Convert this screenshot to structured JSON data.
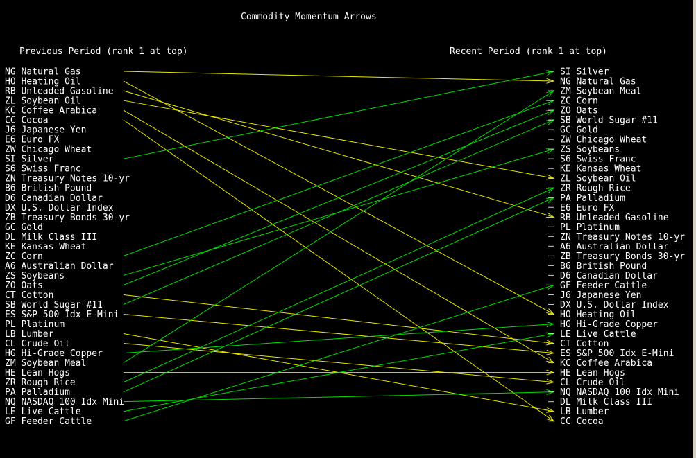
{
  "chart_data": {
    "type": "slope",
    "title": "Commodity Momentum Arrows",
    "left_header": "Previous Period (rank 1 at top)",
    "right_header": "Recent Period (rank 1 at top)",
    "colors": {
      "background": "#000000",
      "text": "#ffffff",
      "rank_up": "#00e000",
      "rank_down": "#e8e800"
    },
    "previous": [
      "NG Natural Gas",
      "HO Heating Oil",
      "RB Unleaded Gasoline",
      "ZL Soybean Oil",
      "KC Coffee Arabica",
      "CC Cocoa",
      "J6 Japanese Yen",
      "E6 Euro FX",
      "ZW Chicago Wheat",
      "SI Silver",
      "S6 Swiss Franc",
      "ZN Treasury Notes 10-yr",
      "B6 British Pound",
      "D6 Canadian Dollar",
      "DX U.S. Dollar Index",
      "ZB Treasury Bonds 30-yr",
      "GC Gold",
      "DL Milk Class III",
      "KE Kansas Wheat",
      "ZC Corn",
      "A6 Australian Dollar",
      "ZS Soybeans",
      "ZO Oats",
      "CT Cotton",
      "SB World Sugar #11",
      "ES S&P 500 Idx E-Mini",
      "PL Platinum",
      "LB Lumber",
      "CL Crude Oil",
      "HG Hi-Grade Copper",
      "ZM Soybean Meal",
      "HE Lean Hogs",
      "ZR Rough Rice",
      "PA Palladium",
      "NQ NASDAQ 100 Idx Mini",
      "LE Live Cattle",
      "GF Feeder Cattle"
    ],
    "recent": [
      "SI Silver",
      "NG Natural Gas",
      "ZM Soybean Meal",
      "ZC Corn",
      "ZO Oats",
      "SB World Sugar #11",
      "GC Gold",
      "ZW Chicago Wheat",
      "ZS Soybeans",
      "S6 Swiss Franc",
      "KE Kansas Wheat",
      "ZL Soybean Oil",
      "ZR Rough Rice",
      "PA Palladium",
      "E6 Euro FX",
      "RB Unleaded Gasoline",
      "PL Platinum",
      "ZN Treasury Notes 10-yr",
      "A6 Australian Dollar",
      "ZB Treasury Bonds 30-yr",
      "B6 British Pound",
      "D6 Canadian Dollar",
      "GF Feeder Cattle",
      "J6 Japanese Yen",
      "DX U.S. Dollar Index",
      "HO Heating Oil",
      "HG Hi-Grade Copper",
      "LE Live Cattle",
      "CT Cotton",
      "ES S&P 500 Idx E-Mini",
      "KC Coffee Arabica",
      "HE Lean Hogs",
      "CL Crude Oil",
      "NQ NASDAQ 100 Idx Mini",
      "DL Milk Class III",
      "LB Lumber",
      "CC Cocoa"
    ],
    "arrows": [
      {
        "from": 1,
        "to": 2
      },
      {
        "from": 2,
        "to": 26
      },
      {
        "from": 3,
        "to": 16
      },
      {
        "from": 4,
        "to": 12
      },
      {
        "from": 5,
        "to": 31
      },
      {
        "from": 6,
        "to": 37
      },
      {
        "from": 10,
        "to": 1
      },
      {
        "from": 20,
        "to": 4
      },
      {
        "from": 22,
        "to": 9
      },
      {
        "from": 23,
        "to": 5
      },
      {
        "from": 24,
        "to": 29
      },
      {
        "from": 25,
        "to": 6
      },
      {
        "from": 26,
        "to": 30
      },
      {
        "from": 28,
        "to": 36
      },
      {
        "from": 29,
        "to": 33
      },
      {
        "from": 30,
        "to": 27
      },
      {
        "from": 31,
        "to": 3
      },
      {
        "from": 32,
        "to": 32
      },
      {
        "from": 33,
        "to": 13
      },
      {
        "from": 34,
        "to": 14
      },
      {
        "from": 35,
        "to": 34
      },
      {
        "from": 36,
        "to": 28
      },
      {
        "from": 37,
        "to": 23
      }
    ]
  }
}
